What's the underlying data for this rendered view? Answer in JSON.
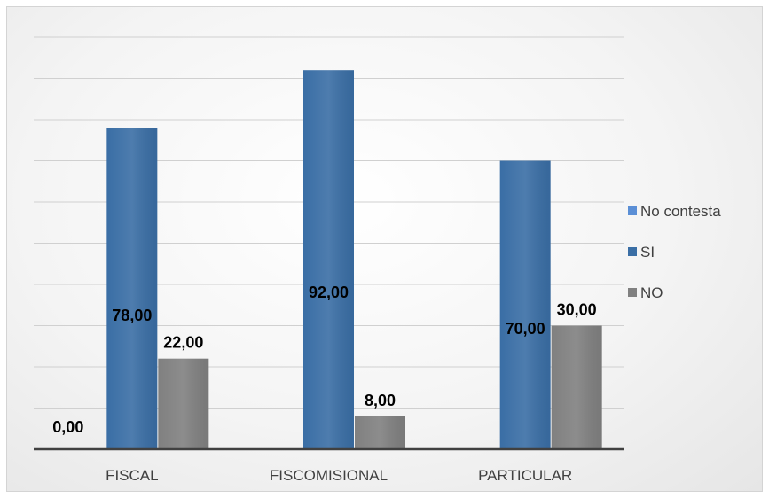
{
  "chart_data": {
    "type": "bar",
    "title": "",
    "xlabel": "",
    "ylabel": "",
    "categories": [
      "FISCAL",
      "FISCOMISIONAL",
      "PARTICULAR"
    ],
    "ylim": [
      0,
      100
    ],
    "grid": true,
    "legend_position": "right",
    "series": [
      {
        "name": "No contesta",
        "color": "#5b8fd6",
        "values": [
          0,
          0,
          0
        ],
        "labels": [
          "0,00",
          "",
          ""
        ]
      },
      {
        "name": "SI",
        "color": "#3a6ea5",
        "values": [
          78,
          92,
          70
        ],
        "labels": [
          "78,00",
          "92,00",
          "70,00"
        ]
      },
      {
        "name": "NO",
        "color": "#808080",
        "values": [
          22,
          8,
          30
        ],
        "labels": [
          "22,00",
          "8,00",
          "30,00"
        ]
      }
    ]
  }
}
